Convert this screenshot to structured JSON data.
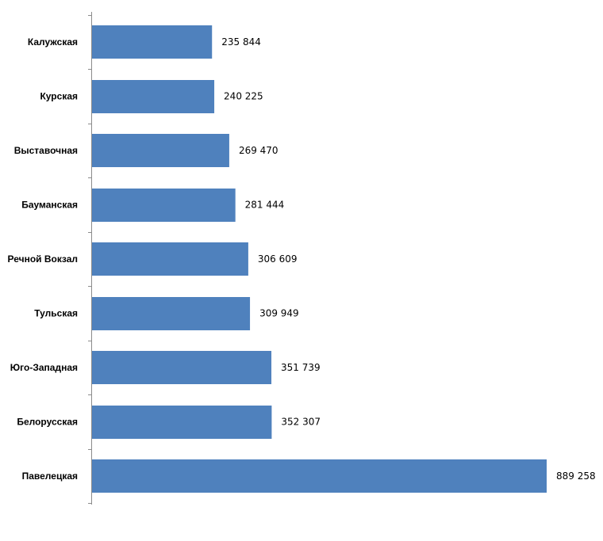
{
  "chart_data": {
    "type": "bar",
    "orientation": "horizontal",
    "title": "",
    "xlabel": "",
    "ylabel": "",
    "categories": [
      "Калужская",
      "Курская",
      "Выставочная",
      "Бауманская",
      "Речной Вокзал",
      "Тульская",
      "Юго-Западная",
      "Белорусская",
      "Павелецкая"
    ],
    "values": [
      235844,
      240225,
      269470,
      281444,
      306609,
      309949,
      351739,
      352307,
      889258
    ],
    "value_labels": [
      "235 844",
      "240 225",
      "269 470",
      "281 444",
      "306 609",
      "309 949",
      "351 739",
      "352 307",
      "889 258"
    ],
    "xlim": [
      0,
      889258
    ],
    "grid": false,
    "legend": "none",
    "bar_color": "#4f81bd"
  }
}
